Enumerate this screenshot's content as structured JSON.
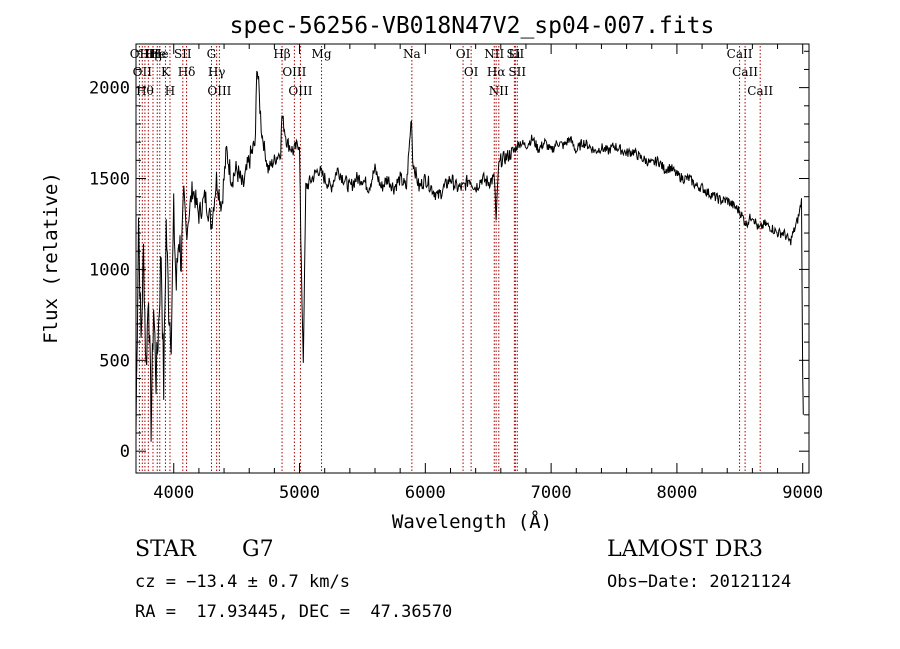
{
  "chart_data": {
    "type": "line",
    "title": "spec-56256-VB018N47V2_sp04-007.fits",
    "xlabel": "Wavelength (Å)",
    "ylabel": "Flux (relative)",
    "xlim": [
      3700,
      9050
    ],
    "ylim": [
      -120,
      2240
    ],
    "x_ticks": [
      4000,
      5000,
      6000,
      7000,
      8000,
      9000
    ],
    "y_ticks": [
      0,
      500,
      1000,
      1500,
      2000
    ],
    "series": [
      {
        "x": [
          3700,
          3720,
          3740,
          3760,
          3780,
          3800,
          3820,
          3840,
          3860,
          3880,
          3900,
          3920,
          3940,
          3960,
          3980,
          4000,
          4020,
          4040,
          4060,
          4080,
          4100,
          4150,
          4200,
          4250,
          4300,
          4340,
          4380,
          4420,
          4460,
          4500,
          4550,
          4600,
          4650,
          4660,
          4700,
          4750,
          4800,
          4850,
          4860,
          4900,
          4950,
          5000,
          5010,
          5030,
          5050,
          5100,
          5150,
          5200,
          5250,
          5300,
          5350,
          5400,
          5450,
          5500,
          5550,
          5600,
          5650,
          5700,
          5750,
          5800,
          5850,
          5890,
          5900,
          5950,
          6000,
          6050,
          6100,
          6150,
          6200,
          6250,
          6300,
          6350,
          6400,
          6450,
          6500,
          6550,
          6563,
          6580,
          6600,
          6650,
          6700,
          6750,
          6800,
          6850,
          6900,
          6950,
          7000,
          7050,
          7100,
          7150,
          7200,
          7250,
          7300,
          7350,
          7400,
          7450,
          7500,
          7550,
          7600,
          7650,
          7700,
          7750,
          7800,
          7850,
          7900,
          7950,
          8000,
          8050,
          8100,
          8150,
          8200,
          8250,
          8300,
          8350,
          8400,
          8450,
          8500,
          8550,
          8600,
          8650,
          8700,
          8750,
          8800,
          8850,
          8900,
          8950,
          8970,
          8990,
          9000,
          9005
        ],
        "y": [
          100,
          1300,
          600,
          1100,
          450,
          900,
          150,
          800,
          400,
          700,
          1100,
          350,
          1250,
          800,
          650,
          1300,
          900,
          1200,
          1050,
          1350,
          1200,
          1450,
          1300,
          1400,
          1250,
          1500,
          1350,
          1650,
          1500,
          1550,
          1450,
          1600,
          1700,
          2150,
          1750,
          1550,
          1600,
          1650,
          1850,
          1700,
          1650,
          1700,
          1150,
          500,
          1450,
          1500,
          1550,
          1500,
          1450,
          1550,
          1500,
          1450,
          1500,
          1500,
          1450,
          1550,
          1450,
          1500,
          1450,
          1500,
          1450,
          1850,
          1600,
          1450,
          1500,
          1450,
          1400,
          1450,
          1500,
          1450,
          1450,
          1500,
          1450,
          1500,
          1480,
          1500,
          1250,
          1550,
          1600,
          1620,
          1650,
          1700,
          1680,
          1720,
          1660,
          1700,
          1650,
          1700,
          1680,
          1720,
          1650,
          1700,
          1680,
          1650,
          1670,
          1650,
          1680,
          1660,
          1640,
          1650,
          1620,
          1600,
          1580,
          1600,
          1550,
          1560,
          1520,
          1500,
          1500,
          1460,
          1450,
          1420,
          1400,
          1380,
          1380,
          1350,
          1320,
          1250,
          1300,
          1220,
          1250,
          1230,
          1200,
          1200,
          1150,
          1250,
          1300,
          1380,
          400,
          200
        ]
      }
    ],
    "lines": [
      {
        "wl": 3727,
        "label": "OII"
      },
      {
        "wl": 3750,
        "label": "OII"
      },
      {
        "wl": 3771,
        "label": "Hθ"
      },
      {
        "wl": 3798,
        "label": "Hη"
      },
      {
        "wl": 3835,
        "label": "Hη"
      },
      {
        "wl": 3869,
        "label": "He"
      },
      {
        "wl": 3889,
        "label": "He"
      },
      {
        "wl": 3934,
        "label": "K"
      },
      {
        "wl": 3970,
        "label": "H"
      },
      {
        "wl": 4072,
        "label": "SII"
      },
      {
        "wl": 4102,
        "label": "Hδ"
      },
      {
        "wl": 4300,
        "label": "G"
      },
      {
        "wl": 4341,
        "label": "Hγ"
      },
      {
        "wl": 4363,
        "label": "OIII"
      },
      {
        "wl": 4861,
        "label": "Hβ"
      },
      {
        "wl": 4959,
        "label": "OIII"
      },
      {
        "wl": 5007,
        "label": "OIII"
      },
      {
        "wl": 5175,
        "label": "Mg"
      },
      {
        "wl": 5893,
        "label": "Na"
      },
      {
        "wl": 6300,
        "label": "OI"
      },
      {
        "wl": 6364,
        "label": "OI"
      },
      {
        "wl": 6548,
        "label": "NII"
      },
      {
        "wl": 6563,
        "label": "Hα"
      },
      {
        "wl": 6584,
        "label": "NII"
      },
      {
        "wl": 6708,
        "label": "Li"
      },
      {
        "wl": 6716,
        "label": "SII"
      },
      {
        "wl": 6731,
        "label": "SII"
      },
      {
        "wl": 8498,
        "label": "CaII"
      },
      {
        "wl": 8542,
        "label": "CaII"
      },
      {
        "wl": 8662,
        "label": "CaII"
      }
    ],
    "line_color": "#aa0000",
    "grid": false,
    "legend": "none"
  },
  "footer": {
    "object_type": "STAR",
    "subclass": "G7",
    "survey": "LAMOST DR3",
    "cz": "cz = −13.4 ± 0.7 km/s",
    "obs_date": "Obs−Date: 20121124",
    "radec": "RA =  17.93445, DEC =  47.36570"
  }
}
